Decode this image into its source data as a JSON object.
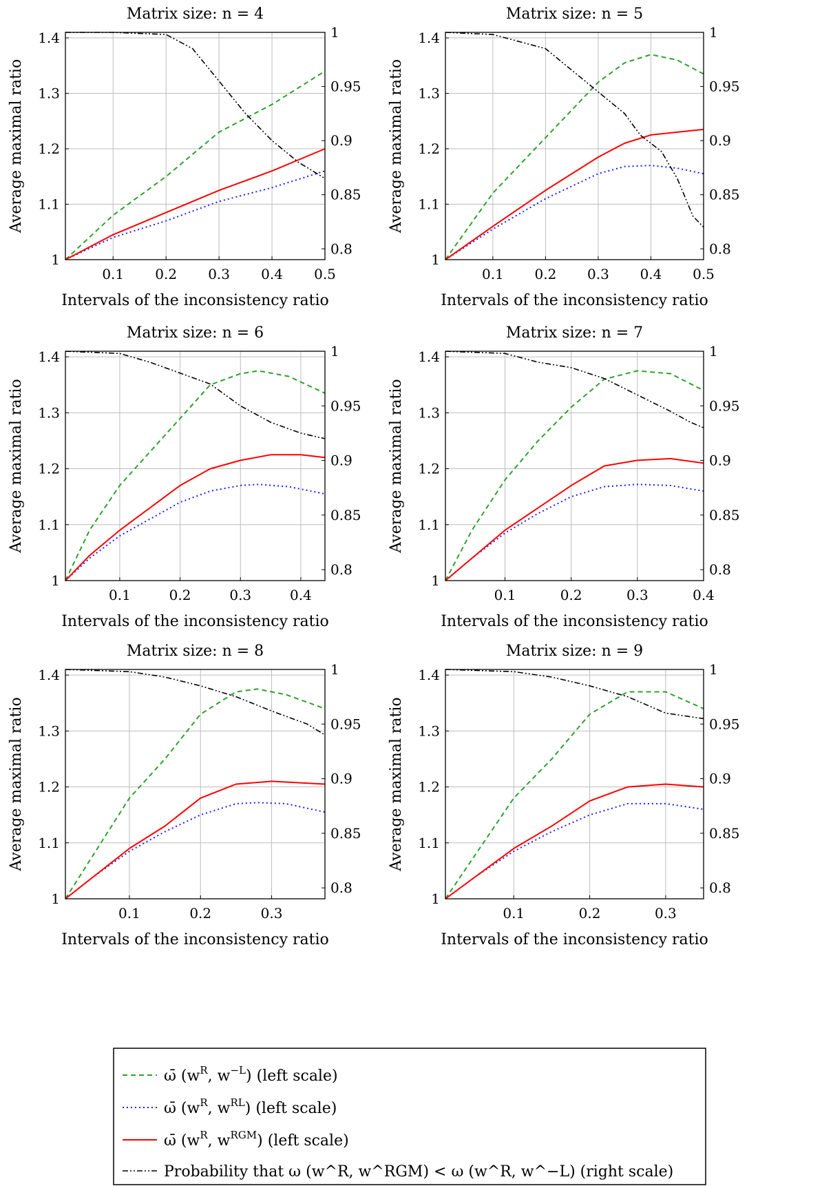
{
  "legend": {
    "entries": [
      {
        "key": "green",
        "before": "ω̄ (w",
        "sup1": "R",
        "mid": ", w",
        "sup2": "−L",
        "after": ") (left scale)"
      },
      {
        "key": "blue",
        "before": "ω̄ (w",
        "sup1": "R",
        "mid": ", w",
        "sup2": "RL",
        "after": ") (left scale)"
      },
      {
        "key": "red",
        "before": "ω̄ (w",
        "sup1": "R",
        "mid": ", w",
        "sup2": "RGM",
        "after": ") (left scale)"
      },
      {
        "key": "black",
        "text": "Probability that ω (w^R, w^RGM) < ω (w^R, w^−L) (right scale)"
      }
    ]
  },
  "chart_data": [
    {
      "type": "line",
      "title": "Matrix size: n = 4",
      "xlabel": "Intervals of the inconsistency ratio",
      "ylabel": "Average maximal ratio",
      "xlim": [
        0.01,
        0.5
      ],
      "ylim": [
        1,
        1.41
      ],
      "y2lim": [
        0.79,
        1.0
      ],
      "xticks": [
        0.1,
        0.2,
        0.3,
        0.4,
        0.5
      ],
      "yticks": [
        1,
        1.1,
        1.2,
        1.3,
        1.4
      ],
      "y2ticks": [
        0.8,
        0.85,
        0.9,
        0.95,
        1
      ],
      "grid": true,
      "series": [
        {
          "key": "green",
          "axis": "left",
          "x": [
            0.01,
            0.1,
            0.2,
            0.3,
            0.4,
            0.5
          ],
          "values": [
            1.0,
            1.08,
            1.15,
            1.23,
            1.28,
            1.34
          ]
        },
        {
          "key": "blue",
          "axis": "left",
          "x": [
            0.01,
            0.1,
            0.2,
            0.3,
            0.4,
            0.5
          ],
          "values": [
            1.0,
            1.04,
            1.07,
            1.105,
            1.13,
            1.16
          ]
        },
        {
          "key": "red",
          "axis": "left",
          "x": [
            0.01,
            0.1,
            0.2,
            0.3,
            0.4,
            0.5
          ],
          "values": [
            1.0,
            1.045,
            1.085,
            1.125,
            1.16,
            1.2
          ]
        },
        {
          "key": "black",
          "axis": "right",
          "x": [
            0.01,
            0.1,
            0.2,
            0.25,
            0.3,
            0.35,
            0.4,
            0.45,
            0.5
          ],
          "values": [
            1.0,
            1.0,
            0.998,
            0.985,
            0.955,
            0.925,
            0.9,
            0.88,
            0.865
          ]
        }
      ]
    },
    {
      "type": "line",
      "title": "Matrix size: n = 5",
      "xlabel": "Intervals of the inconsistency ratio",
      "ylabel": "Average maximal ratio",
      "xlim": [
        0.01,
        0.5
      ],
      "ylim": [
        1,
        1.41
      ],
      "y2lim": [
        0.79,
        1.0
      ],
      "xticks": [
        0.1,
        0.2,
        0.3,
        0.4,
        0.5
      ],
      "yticks": [
        1,
        1.1,
        1.2,
        1.3,
        1.4
      ],
      "y2ticks": [
        0.8,
        0.85,
        0.9,
        0.95,
        1
      ],
      "grid": true,
      "series": [
        {
          "key": "green",
          "axis": "left",
          "x": [
            0.01,
            0.1,
            0.2,
            0.3,
            0.35,
            0.4,
            0.45,
            0.5
          ],
          "values": [
            1.0,
            1.12,
            1.22,
            1.32,
            1.355,
            1.37,
            1.36,
            1.335
          ]
        },
        {
          "key": "blue",
          "axis": "left",
          "x": [
            0.01,
            0.1,
            0.2,
            0.3,
            0.35,
            0.4,
            0.45,
            0.5
          ],
          "values": [
            1.0,
            1.055,
            1.11,
            1.155,
            1.168,
            1.17,
            1.165,
            1.155
          ]
        },
        {
          "key": "red",
          "axis": "left",
          "x": [
            0.01,
            0.1,
            0.2,
            0.3,
            0.35,
            0.4,
            0.45,
            0.5
          ],
          "values": [
            1.0,
            1.06,
            1.125,
            1.185,
            1.21,
            1.225,
            1.23,
            1.235
          ]
        },
        {
          "key": "black",
          "axis": "right",
          "x": [
            0.01,
            0.1,
            0.2,
            0.25,
            0.3,
            0.35,
            0.38,
            0.42,
            0.45,
            0.48,
            0.5
          ],
          "values": [
            1.0,
            0.998,
            0.985,
            0.965,
            0.945,
            0.925,
            0.905,
            0.89,
            0.865,
            0.83,
            0.82
          ]
        }
      ]
    },
    {
      "type": "line",
      "title": "Matrix size: n = 6",
      "xlabel": "Intervals of the inconsistency ratio",
      "ylabel": "Average maximal ratio",
      "xlim": [
        0.01,
        0.44
      ],
      "ylim": [
        1,
        1.41
      ],
      "y2lim": [
        0.79,
        1.0
      ],
      "xticks": [
        0.1,
        0.2,
        0.3,
        0.4
      ],
      "yticks": [
        1,
        1.1,
        1.2,
        1.3,
        1.4
      ],
      "y2ticks": [
        0.8,
        0.85,
        0.9,
        0.95,
        1
      ],
      "grid": true,
      "series": [
        {
          "key": "green",
          "axis": "left",
          "x": [
            0.01,
            0.05,
            0.1,
            0.15,
            0.2,
            0.25,
            0.3,
            0.33,
            0.38,
            0.44
          ],
          "values": [
            1.0,
            1.09,
            1.17,
            1.23,
            1.29,
            1.35,
            1.37,
            1.375,
            1.365,
            1.335
          ]
        },
        {
          "key": "blue",
          "axis": "left",
          "x": [
            0.01,
            0.05,
            0.1,
            0.15,
            0.2,
            0.25,
            0.3,
            0.33,
            0.38,
            0.44
          ],
          "values": [
            1.0,
            1.04,
            1.08,
            1.11,
            1.14,
            1.16,
            1.17,
            1.172,
            1.168,
            1.155
          ]
        },
        {
          "key": "red",
          "axis": "left",
          "x": [
            0.01,
            0.05,
            0.1,
            0.15,
            0.2,
            0.25,
            0.3,
            0.35,
            0.4,
            0.44
          ],
          "values": [
            1.0,
            1.045,
            1.09,
            1.13,
            1.17,
            1.2,
            1.215,
            1.225,
            1.225,
            1.22
          ]
        },
        {
          "key": "black",
          "axis": "right",
          "x": [
            0.01,
            0.1,
            0.15,
            0.2,
            0.25,
            0.3,
            0.35,
            0.4,
            0.44
          ],
          "values": [
            1.0,
            0.998,
            0.99,
            0.98,
            0.97,
            0.95,
            0.935,
            0.925,
            0.92
          ]
        }
      ]
    },
    {
      "type": "line",
      "title": "Matrix size: n = 7",
      "xlabel": "Intervals of the inconsistency ratio",
      "ylabel": "Average maximal ratio",
      "xlim": [
        0.01,
        0.4
      ],
      "ylim": [
        1,
        1.41
      ],
      "y2lim": [
        0.79,
        1.0
      ],
      "xticks": [
        0.1,
        0.2,
        0.3,
        0.4
      ],
      "yticks": [
        1,
        1.1,
        1.2,
        1.3,
        1.4
      ],
      "y2ticks": [
        0.8,
        0.85,
        0.9,
        0.95,
        1
      ],
      "grid": true,
      "series": [
        {
          "key": "green",
          "axis": "left",
          "x": [
            0.01,
            0.05,
            0.1,
            0.15,
            0.2,
            0.25,
            0.3,
            0.35,
            0.4
          ],
          "values": [
            1.0,
            1.09,
            1.18,
            1.25,
            1.31,
            1.36,
            1.375,
            1.37,
            1.34
          ]
        },
        {
          "key": "blue",
          "axis": "left",
          "x": [
            0.01,
            0.05,
            0.1,
            0.15,
            0.2,
            0.25,
            0.3,
            0.35,
            0.4
          ],
          "values": [
            1.0,
            1.04,
            1.085,
            1.12,
            1.15,
            1.168,
            1.172,
            1.17,
            1.16
          ]
        },
        {
          "key": "red",
          "axis": "left",
          "x": [
            0.01,
            0.05,
            0.1,
            0.15,
            0.2,
            0.25,
            0.3,
            0.35,
            0.4
          ],
          "values": [
            1.0,
            1.04,
            1.09,
            1.13,
            1.17,
            1.205,
            1.215,
            1.218,
            1.21
          ]
        },
        {
          "key": "black",
          "axis": "right",
          "x": [
            0.01,
            0.1,
            0.15,
            0.2,
            0.25,
            0.3,
            0.35,
            0.38,
            0.4
          ],
          "values": [
            1.0,
            0.998,
            0.99,
            0.985,
            0.975,
            0.96,
            0.945,
            0.935,
            0.93
          ]
        }
      ]
    },
    {
      "type": "line",
      "title": "Matrix size: n = 8",
      "xlabel": "Intervals of the inconsistency ratio",
      "ylabel": "Average maximal ratio",
      "xlim": [
        0.01,
        0.375
      ],
      "ylim": [
        1,
        1.41
      ],
      "y2lim": [
        0.79,
        1.0
      ],
      "xticks": [
        0.1,
        0.2,
        0.3
      ],
      "yticks": [
        1,
        1.1,
        1.2,
        1.3,
        1.4
      ],
      "y2ticks": [
        0.8,
        0.85,
        0.9,
        0.95,
        1
      ],
      "grid": true,
      "series": [
        {
          "key": "green",
          "axis": "left",
          "x": [
            0.01,
            0.05,
            0.1,
            0.15,
            0.2,
            0.25,
            0.28,
            0.32,
            0.375
          ],
          "values": [
            1.0,
            1.08,
            1.18,
            1.25,
            1.33,
            1.37,
            1.375,
            1.365,
            1.34
          ]
        },
        {
          "key": "blue",
          "axis": "left",
          "x": [
            0.01,
            0.05,
            0.1,
            0.15,
            0.2,
            0.25,
            0.28,
            0.32,
            0.375
          ],
          "values": [
            1.0,
            1.04,
            1.085,
            1.12,
            1.15,
            1.17,
            1.172,
            1.17,
            1.155
          ]
        },
        {
          "key": "red",
          "axis": "left",
          "x": [
            0.01,
            0.05,
            0.1,
            0.15,
            0.2,
            0.25,
            0.3,
            0.375
          ],
          "values": [
            1.0,
            1.04,
            1.09,
            1.13,
            1.18,
            1.205,
            1.21,
            1.205
          ]
        },
        {
          "key": "black",
          "axis": "right",
          "x": [
            0.01,
            0.1,
            0.15,
            0.2,
            0.25,
            0.3,
            0.35,
            0.375
          ],
          "values": [
            1.0,
            0.998,
            0.993,
            0.985,
            0.975,
            0.962,
            0.95,
            0.94
          ]
        }
      ]
    },
    {
      "type": "line",
      "title": "Matrix size: n = 9",
      "xlabel": "Intervals of the inconsistency ratio",
      "ylabel": "Average maximal ratio",
      "xlim": [
        0.01,
        0.35
      ],
      "ylim": [
        1,
        1.41
      ],
      "y2lim": [
        0.79,
        1.0
      ],
      "xticks": [
        0.1,
        0.2,
        0.3
      ],
      "yticks": [
        1,
        1.1,
        1.2,
        1.3,
        1.4
      ],
      "y2ticks": [
        0.8,
        0.85,
        0.9,
        0.95,
        1
      ],
      "grid": true,
      "series": [
        {
          "key": "green",
          "axis": "left",
          "x": [
            0.01,
            0.05,
            0.1,
            0.15,
            0.2,
            0.25,
            0.3,
            0.35
          ],
          "values": [
            1.0,
            1.08,
            1.18,
            1.25,
            1.33,
            1.37,
            1.37,
            1.34
          ]
        },
        {
          "key": "blue",
          "axis": "left",
          "x": [
            0.01,
            0.05,
            0.1,
            0.15,
            0.2,
            0.25,
            0.3,
            0.35
          ],
          "values": [
            1.0,
            1.04,
            1.085,
            1.12,
            1.15,
            1.17,
            1.17,
            1.16
          ]
        },
        {
          "key": "red",
          "axis": "left",
          "x": [
            0.01,
            0.05,
            0.1,
            0.15,
            0.2,
            0.25,
            0.3,
            0.35
          ],
          "values": [
            1.0,
            1.04,
            1.09,
            1.13,
            1.175,
            1.2,
            1.205,
            1.2
          ]
        },
        {
          "key": "black",
          "axis": "right",
          "x": [
            0.01,
            0.1,
            0.15,
            0.2,
            0.25,
            0.3,
            0.35
          ],
          "values": [
            1.0,
            0.998,
            0.993,
            0.985,
            0.975,
            0.96,
            0.955
          ]
        }
      ]
    }
  ]
}
